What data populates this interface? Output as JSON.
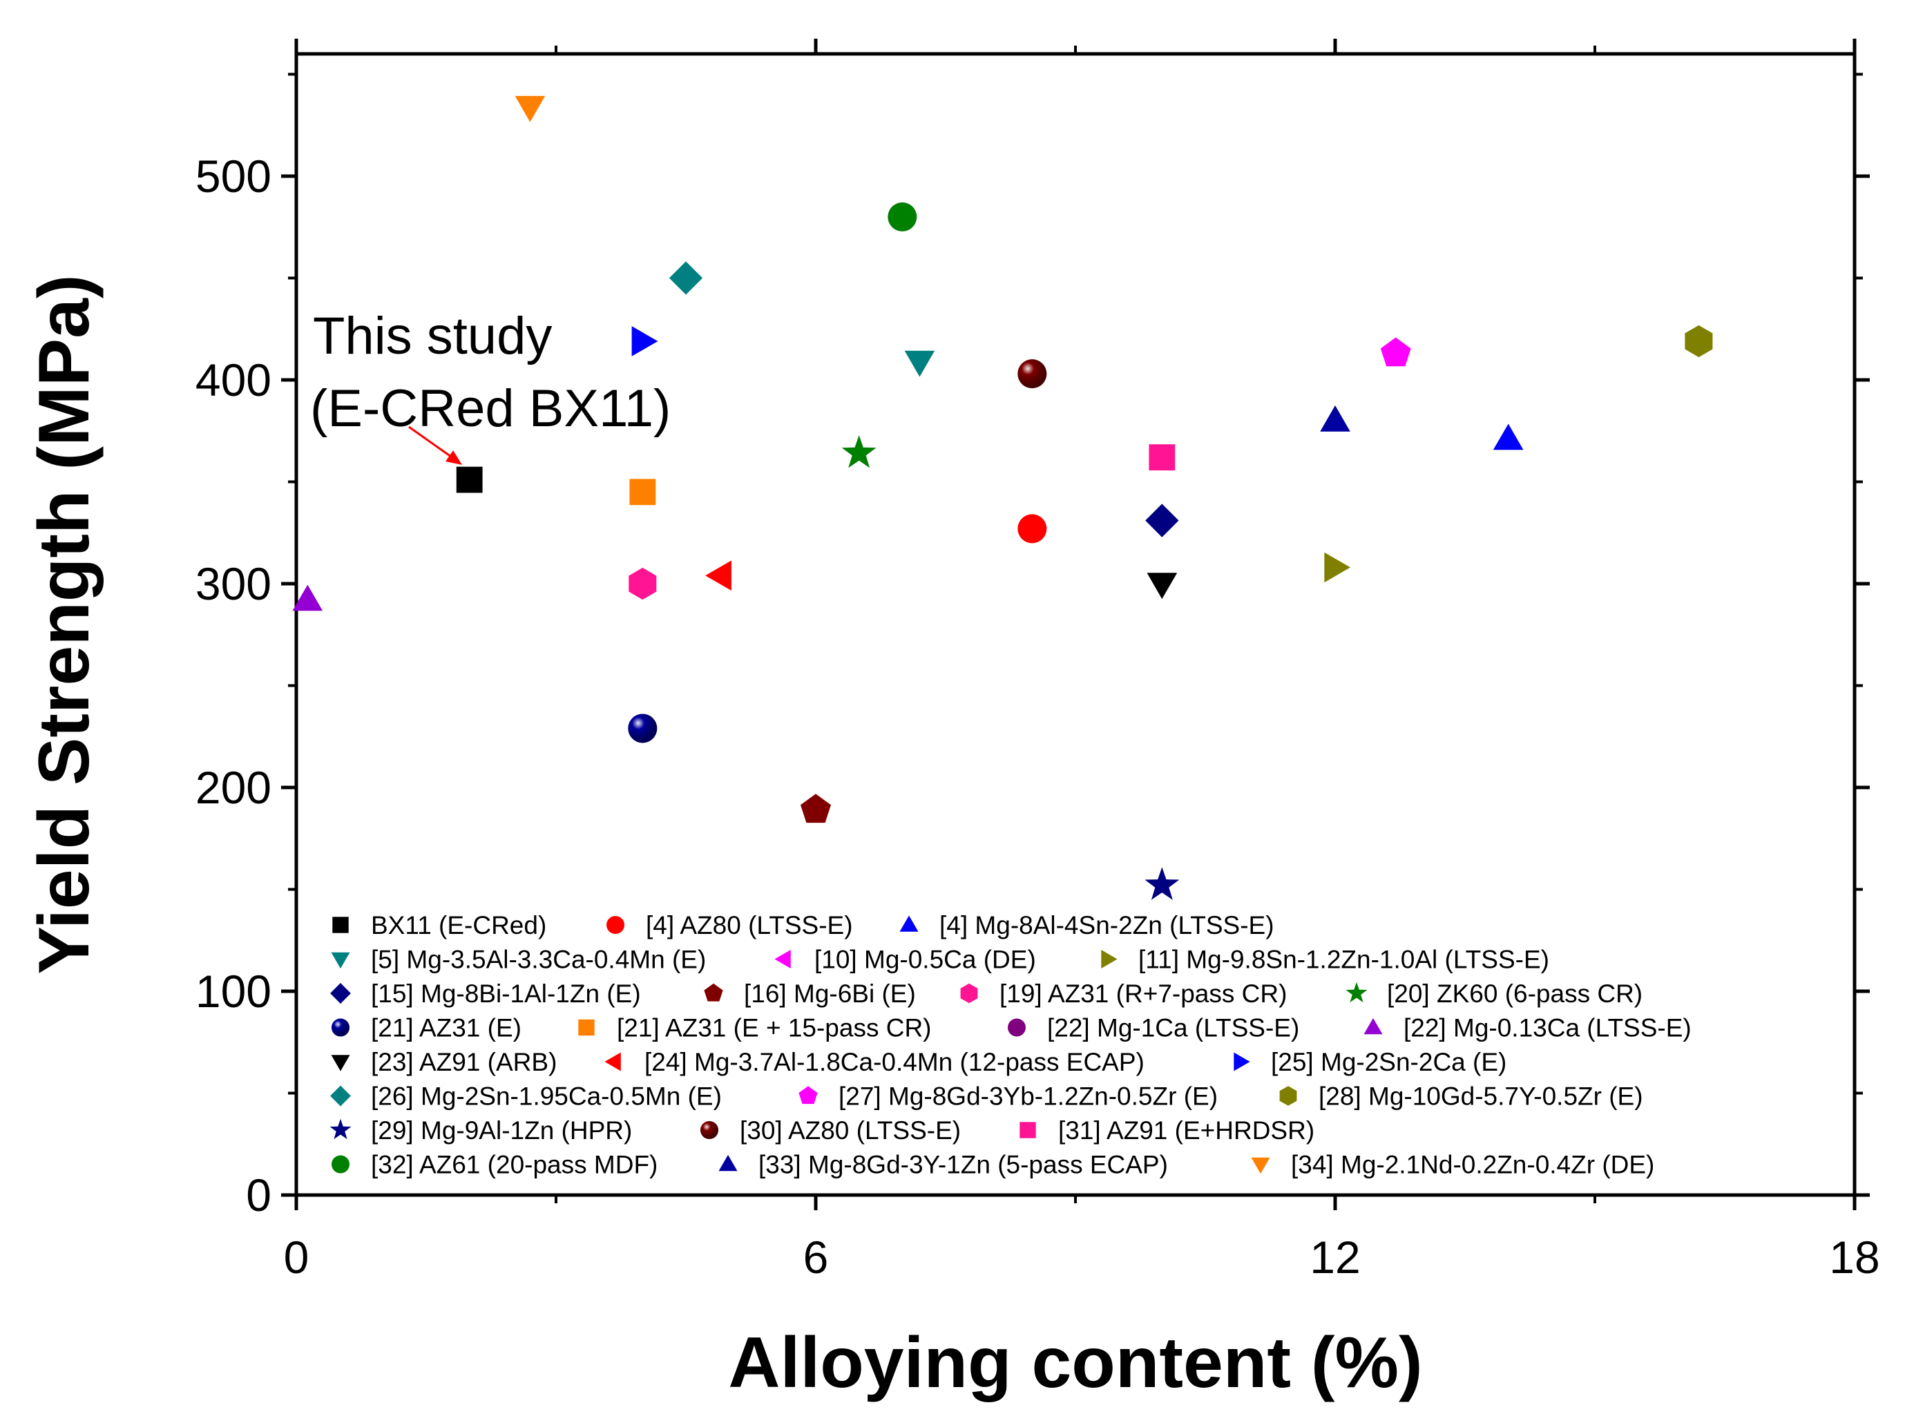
{
  "chart_data": {
    "type": "scatter",
    "xlabel": "Alloying content (%)",
    "ylabel": "Yield Strength (MPa)",
    "xlim": [
      0,
      18
    ],
    "ylim": [
      0,
      560
    ],
    "xticks": [
      0,
      6,
      12,
      18
    ],
    "yticks": [
      0,
      100,
      200,
      300,
      400,
      500
    ],
    "grid": false,
    "legend_position": "bottom-left",
    "annotation": {
      "lines": [
        "This study",
        "(E-CRed BX11)"
      ],
      "target_series": "BX11 (E-CRed)"
    },
    "series": [
      {
        "name": "BX11 (E-CRed)",
        "marker": "square",
        "color": "#000000",
        "x": 2.0,
        "y": 351
      },
      {
        "name": "[4] AZ80 (LTSS-E)",
        "marker": "circle",
        "color": "#ff0000",
        "x": 8.5,
        "y": 327
      },
      {
        "name": "[4] Mg-8Al-4Sn-2Zn (LTSS-E)",
        "marker": "triangle-up",
        "color": "#0000ff",
        "x": 14.0,
        "y": 371
      },
      {
        "name": "[5] Mg-3.5Al-3.3Ca-0.4Mn (E)",
        "marker": "triangle-down",
        "color": "#008080",
        "x": 7.2,
        "y": 409
      },
      {
        "name": "[10] Mg-0.5Ca (DE)",
        "marker": "triangle-left",
        "color": "#ff00ff",
        "x": null,
        "y": null
      },
      {
        "name": "[11] Mg-9.8Sn-1.2Zn-1.0Al (LTSS-E)",
        "marker": "triangle-right",
        "color": "#808000",
        "x": 12.0,
        "y": 308
      },
      {
        "name": "[15] Mg-8Bi-1Al-1Zn (E)",
        "marker": "diamond",
        "color": "#000080",
        "x": 10.0,
        "y": 331
      },
      {
        "name": "[16] Mg-6Bi (E)",
        "marker": "pentagon",
        "color": "#800000",
        "x": 6.0,
        "y": 189
      },
      {
        "name": "[19] AZ31 (R+7-pass CR)",
        "marker": "hexagon",
        "color": "#ff1493",
        "x": 4.0,
        "y": 300
      },
      {
        "name": "[20] ZK60 (6-pass CR)",
        "marker": "star",
        "color": "#008000",
        "x": 6.5,
        "y": 364
      },
      {
        "name": "[21] AZ31 (E)",
        "marker": "sphere",
        "color": "#0000a0",
        "x": 4.0,
        "y": 229
      },
      {
        "name": "[21] AZ31 (E + 15-pass CR)",
        "marker": "square",
        "color": "#ff8000",
        "x": 4.0,
        "y": 345
      },
      {
        "name": "[22] Mg-1Ca (LTSS-E)",
        "marker": "circle",
        "color": "#800080",
        "x": null,
        "y": null
      },
      {
        "name": "[22] Mg-0.13Ca (LTSS-E)",
        "marker": "triangle-up",
        "color": "#9400d3",
        "x": 0.13,
        "y": 292
      },
      {
        "name": "[23] AZ91 (ARB)",
        "marker": "triangle-down",
        "color": "#000000",
        "x": 10.0,
        "y": 300
      },
      {
        "name": "[24] Mg-3.7Al-1.8Ca-0.4Mn (12-pass ECAP)",
        "marker": "triangle-left",
        "color": "#ff0000",
        "x": 4.9,
        "y": 304
      },
      {
        "name": "[25] Mg-2Sn-2Ca (E)",
        "marker": "triangle-right",
        "color": "#0000ff",
        "x": 4.0,
        "y": 419
      },
      {
        "name": "[26] Mg-2Sn-1.95Ca-0.5Mn (E)",
        "marker": "diamond",
        "color": "#008080",
        "x": 4.5,
        "y": 450
      },
      {
        "name": "[27] Mg-8Gd-3Yb-1.2Zn-0.5Zr (E)",
        "marker": "pentagon",
        "color": "#ff00ff",
        "x": 12.7,
        "y": 413
      },
      {
        "name": "[28] Mg-10Gd-5.7Y-0.5Zr (E)",
        "marker": "hexagon",
        "color": "#808000",
        "x": 16.2,
        "y": 419
      },
      {
        "name": "[29] Mg-9Al-1Zn (HPR)",
        "marker": "star",
        "color": "#000080",
        "x": 10.0,
        "y": 152
      },
      {
        "name": "[30] AZ80 (LTSS-E)",
        "marker": "sphere",
        "color": "#800000",
        "x": 8.5,
        "y": 403
      },
      {
        "name": "[31] AZ91 (E+HRDSR)",
        "marker": "square",
        "color": "#ff1493",
        "x": 10.0,
        "y": 362
      },
      {
        "name": "[32] AZ61 (20-pass MDF)",
        "marker": "circle",
        "color": "#008000",
        "x": 7.0,
        "y": 480
      },
      {
        "name": "[33] Mg-8Gd-3Y-1Zn (5-pass ECAP)",
        "marker": "triangle-up",
        "color": "#0000a0",
        "x": 12.0,
        "y": 380
      },
      {
        "name": "[34] Mg-2.1Nd-0.2Zn-0.4Zr (DE)",
        "marker": "triangle-down",
        "color": "#ff8000",
        "x": 2.7,
        "y": 534
      }
    ]
  }
}
